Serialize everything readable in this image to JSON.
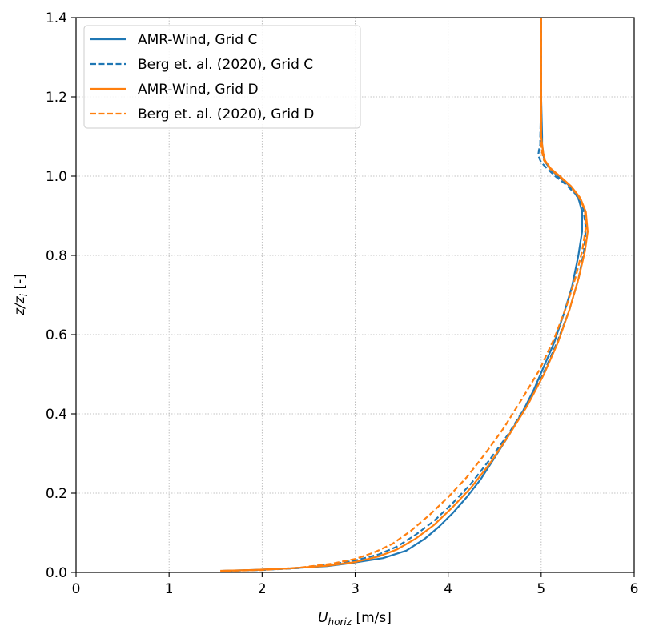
{
  "chart_data": {
    "type": "line",
    "title": "",
    "xlabel_main": "U",
    "xlabel_sub": "horiz",
    "xlabel_unit": " [m/s]",
    "ylabel_main": "z/z",
    "ylabel_sub": "i",
    "ylabel_unit": " [-]",
    "xlim": [
      0,
      6
    ],
    "ylim": [
      0,
      1.4
    ],
    "xticks": [
      0,
      1,
      2,
      3,
      4,
      5,
      6
    ],
    "xtick_labels": [
      "0",
      "1",
      "2",
      "3",
      "4",
      "5",
      "6"
    ],
    "yticks": [
      0.0,
      0.2,
      0.4,
      0.6,
      0.8,
      1.0,
      1.2,
      1.4
    ],
    "ytick_labels": [
      "0.0",
      "0.2",
      "0.4",
      "0.6",
      "0.8",
      "1.0",
      "1.2",
      "1.4"
    ],
    "grid": true,
    "legend_position": "top-left",
    "series": [
      {
        "name": "AMR-Wind, Grid C",
        "color": "#1f77b4",
        "dash": "solid",
        "x": [
          1.58,
          1.9,
          2.3,
          2.7,
          3.0,
          3.3,
          3.55,
          3.75,
          3.9,
          4.05,
          4.2,
          4.35,
          4.5,
          4.65,
          4.8,
          4.92,
          5.03,
          5.14,
          5.24,
          5.33,
          5.4,
          5.44,
          5.44,
          5.4,
          5.33,
          5.26,
          5.18,
          5.11,
          5.06,
          5.03,
          5.02,
          5.01,
          5.01,
          5.0,
          5.0,
          5.0
        ],
        "y": [
          0.004,
          0.006,
          0.01,
          0.016,
          0.025,
          0.036,
          0.055,
          0.085,
          0.115,
          0.15,
          0.19,
          0.235,
          0.29,
          0.345,
          0.405,
          0.46,
          0.52,
          0.58,
          0.65,
          0.72,
          0.8,
          0.86,
          0.91,
          0.945,
          0.97,
          0.985,
          1.0,
          1.015,
          1.03,
          1.045,
          1.06,
          1.08,
          1.1,
          1.2,
          1.3,
          1.4
        ]
      },
      {
        "name": "Berg et. al. (2020), Grid C",
        "color": "#1f77b4",
        "dash": "dashed",
        "x": [
          1.62,
          2.0,
          2.4,
          2.75,
          3.0,
          3.25,
          3.45,
          3.65,
          3.85,
          4.05,
          4.25,
          4.45,
          4.65,
          4.85,
          5.02,
          5.17,
          5.3,
          5.4,
          5.46,
          5.48,
          5.45,
          5.37,
          5.26,
          5.15,
          5.06,
          5.0,
          4.98,
          4.97,
          4.98,
          4.99,
          4.99,
          5.0,
          5.0,
          5.0
        ],
        "y": [
          0.004,
          0.006,
          0.011,
          0.02,
          0.03,
          0.045,
          0.065,
          0.095,
          0.13,
          0.175,
          0.225,
          0.285,
          0.35,
          0.425,
          0.5,
          0.58,
          0.66,
          0.74,
          0.81,
          0.87,
          0.92,
          0.955,
          0.98,
          1.0,
          1.02,
          1.035,
          1.045,
          1.055,
          1.07,
          1.08,
          1.1,
          1.2,
          1.3,
          1.4
        ]
      },
      {
        "name": "AMR-Wind, Grid D",
        "color": "#ff7f0e",
        "dash": "solid",
        "x": [
          1.55,
          1.9,
          2.3,
          2.7,
          3.0,
          3.25,
          3.45,
          3.65,
          3.85,
          4.05,
          4.25,
          4.45,
          4.65,
          4.85,
          5.03,
          5.18,
          5.3,
          5.4,
          5.47,
          5.5,
          5.48,
          5.42,
          5.32,
          5.2,
          5.1,
          5.04,
          5.02,
          5.01,
          5.0,
          5.0,
          5.0,
          5.0
        ],
        "y": [
          0.004,
          0.006,
          0.01,
          0.017,
          0.026,
          0.04,
          0.058,
          0.085,
          0.12,
          0.165,
          0.215,
          0.275,
          0.345,
          0.42,
          0.5,
          0.58,
          0.66,
          0.74,
          0.81,
          0.86,
          0.91,
          0.945,
          0.975,
          1.0,
          1.02,
          1.04,
          1.06,
          1.08,
          1.1,
          1.2,
          1.3,
          1.4
        ]
      },
      {
        "name": "Berg et. al. (2020), Grid D",
        "color": "#ff7f0e",
        "dash": "dashed",
        "x": [
          1.6,
          2.0,
          2.4,
          2.75,
          3.0,
          3.2,
          3.4,
          3.6,
          3.8,
          4.0,
          4.2,
          4.4,
          4.6,
          4.8,
          4.98,
          5.14,
          5.27,
          5.37,
          5.44,
          5.48,
          5.47,
          5.4,
          5.3,
          5.19,
          5.09,
          5.03,
          5.01,
          5.0,
          5.0,
          5.0,
          5.0
        ],
        "y": [
          0.004,
          0.006,
          0.012,
          0.022,
          0.034,
          0.05,
          0.072,
          0.105,
          0.145,
          0.19,
          0.24,
          0.3,
          0.365,
          0.44,
          0.51,
          0.59,
          0.67,
          0.745,
          0.81,
          0.87,
          0.915,
          0.95,
          0.978,
          1.0,
          1.02,
          1.04,
          1.06,
          1.08,
          1.2,
          1.3,
          1.4
        ]
      }
    ]
  }
}
